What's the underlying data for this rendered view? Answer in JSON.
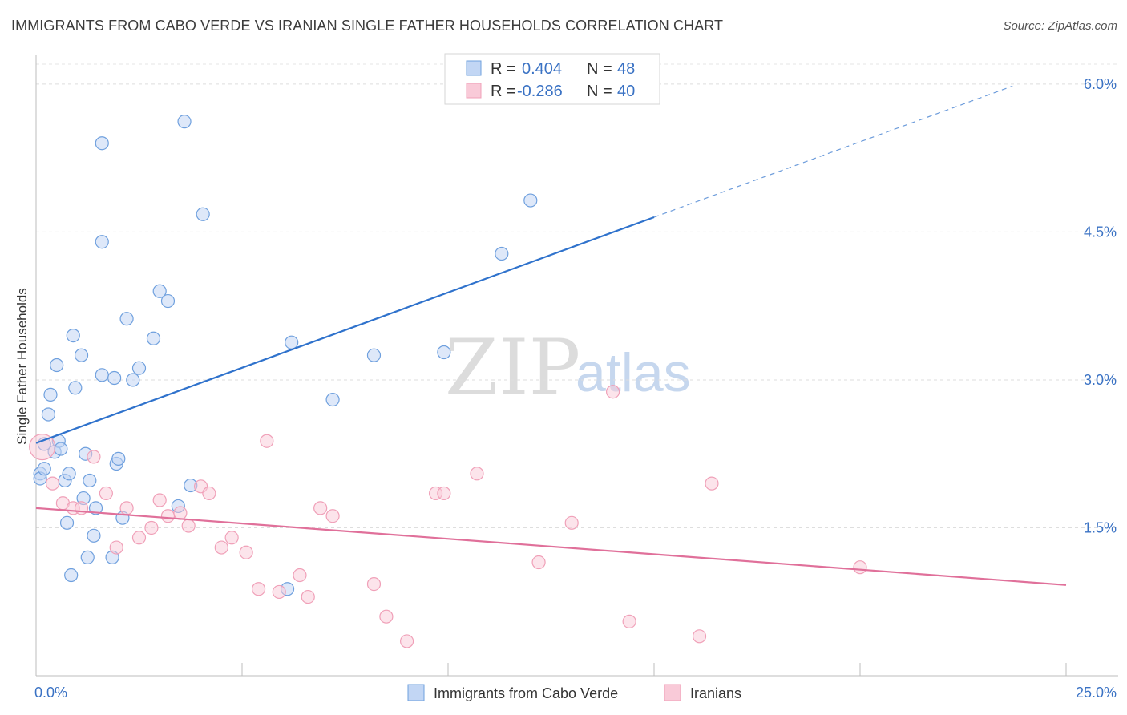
{
  "header": {
    "title": "IMMIGRANTS FROM CABO VERDE VS IRANIAN SINGLE FATHER HOUSEHOLDS CORRELATION CHART",
    "source": "Source: ZipAtlas.com"
  },
  "watermark": {
    "zip": "ZIP",
    "atlas": "atlas"
  },
  "stats_legend": [
    {
      "r_label": "R =",
      "r_value": "0.404",
      "n_label": "N =",
      "n_value": "48"
    },
    {
      "r_label": "R =",
      "r_value": "-0.286",
      "n_label": "N =",
      "n_value": "40"
    }
  ],
  "chart_data": {
    "type": "scatter",
    "title": "IMMIGRANTS FROM CABO VERDE VS IRANIAN SINGLE FATHER HOUSEHOLDS CORRELATION CHART",
    "xlabel": "",
    "ylabel": "Single Father Households",
    "xlim": [
      0,
      25
    ],
    "ylim": [
      0,
      6.3
    ],
    "x_tick_labels": [
      "0.0%",
      "25.0%"
    ],
    "y_ticks": [
      1.5,
      3.0,
      4.5,
      6.0
    ],
    "y_tick_labels": [
      "1.5%",
      "3.0%",
      "4.5%",
      "6.0%"
    ],
    "grid": "horizontal dashed",
    "legend_position": "bottom-center",
    "colors": {
      "cabo_verde": "#6fa0de",
      "cabo_verde_line": "#2f72cc",
      "iranians": "#f0a0b8",
      "iranians_line": "#e0709a",
      "tick_text": "#3a72c4"
    },
    "series": [
      {
        "name": "Immigrants from Cabo Verde",
        "r": 0.404,
        "n": 48,
        "trend": {
          "x0": 0.0,
          "y0": 2.36,
          "x1": 15.0,
          "y1": 4.65,
          "dash_to_x": 23.7,
          "dash_to_y": 5.98
        },
        "points": [
          [
            0.1,
            2.05
          ],
          [
            0.1,
            2.0
          ],
          [
            0.2,
            2.1
          ],
          [
            0.2,
            2.35
          ],
          [
            0.3,
            2.65
          ],
          [
            0.35,
            2.85
          ],
          [
            0.45,
            2.27
          ],
          [
            0.5,
            3.15
          ],
          [
            0.55,
            2.38
          ],
          [
            0.6,
            2.3
          ],
          [
            0.7,
            1.98
          ],
          [
            0.75,
            1.55
          ],
          [
            0.8,
            2.05
          ],
          [
            0.85,
            1.02
          ],
          [
            0.9,
            3.45
          ],
          [
            0.95,
            2.92
          ],
          [
            1.1,
            3.25
          ],
          [
            1.15,
            1.8
          ],
          [
            1.2,
            2.25
          ],
          [
            1.25,
            1.2
          ],
          [
            1.3,
            1.98
          ],
          [
            1.4,
            1.42
          ],
          [
            1.45,
            1.7
          ],
          [
            1.6,
            3.05
          ],
          [
            1.6,
            5.4
          ],
          [
            1.6,
            4.4
          ],
          [
            1.9,
            3.02
          ],
          [
            1.85,
            1.2
          ],
          [
            1.95,
            2.15
          ],
          [
            2.0,
            2.2
          ],
          [
            2.1,
            1.6
          ],
          [
            2.2,
            3.62
          ],
          [
            2.35,
            3.0
          ],
          [
            2.5,
            3.12
          ],
          [
            2.85,
            3.42
          ],
          [
            3.0,
            3.9
          ],
          [
            3.2,
            3.8
          ],
          [
            3.45,
            1.72
          ],
          [
            3.6,
            5.62
          ],
          [
            3.75,
            1.93
          ],
          [
            4.05,
            4.68
          ],
          [
            6.2,
            3.38
          ],
          [
            6.1,
            0.88
          ],
          [
            7.2,
            2.8
          ],
          [
            8.2,
            3.25
          ],
          [
            9.9,
            3.28
          ],
          [
            11.3,
            4.28
          ],
          [
            12.0,
            4.82
          ]
        ]
      },
      {
        "name": "Iranians",
        "r": -0.286,
        "n": 40,
        "trend": {
          "x0": 0.0,
          "y0": 1.7,
          "x1": 25.0,
          "y1": 0.92
        },
        "points": [
          [
            0.15,
            2.32
          ],
          [
            0.4,
            1.95
          ],
          [
            0.65,
            1.75
          ],
          [
            0.9,
            1.7
          ],
          [
            1.1,
            1.7
          ],
          [
            1.4,
            2.22
          ],
          [
            1.7,
            1.85
          ],
          [
            1.95,
            1.3
          ],
          [
            2.2,
            1.7
          ],
          [
            2.5,
            1.4
          ],
          [
            2.8,
            1.5
          ],
          [
            3.0,
            1.78
          ],
          [
            3.2,
            1.62
          ],
          [
            3.5,
            1.65
          ],
          [
            3.7,
            1.52
          ],
          [
            4.0,
            1.92
          ],
          [
            4.2,
            1.85
          ],
          [
            4.5,
            1.3
          ],
          [
            4.75,
            1.4
          ],
          [
            5.1,
            1.25
          ],
          [
            5.4,
            0.88
          ],
          [
            5.6,
            2.38
          ],
          [
            5.9,
            0.85
          ],
          [
            6.4,
            1.02
          ],
          [
            6.6,
            0.8
          ],
          [
            6.9,
            1.7
          ],
          [
            7.2,
            1.62
          ],
          [
            8.2,
            0.93
          ],
          [
            8.5,
            0.6
          ],
          [
            9.0,
            0.35
          ],
          [
            9.7,
            1.85
          ],
          [
            9.9,
            1.85
          ],
          [
            10.7,
            2.05
          ],
          [
            12.2,
            1.15
          ],
          [
            13.0,
            1.55
          ],
          [
            14.0,
            2.88
          ],
          [
            14.4,
            0.55
          ],
          [
            16.1,
            0.4
          ],
          [
            16.4,
            1.95
          ],
          [
            20.0,
            1.1
          ]
        ]
      }
    ]
  }
}
